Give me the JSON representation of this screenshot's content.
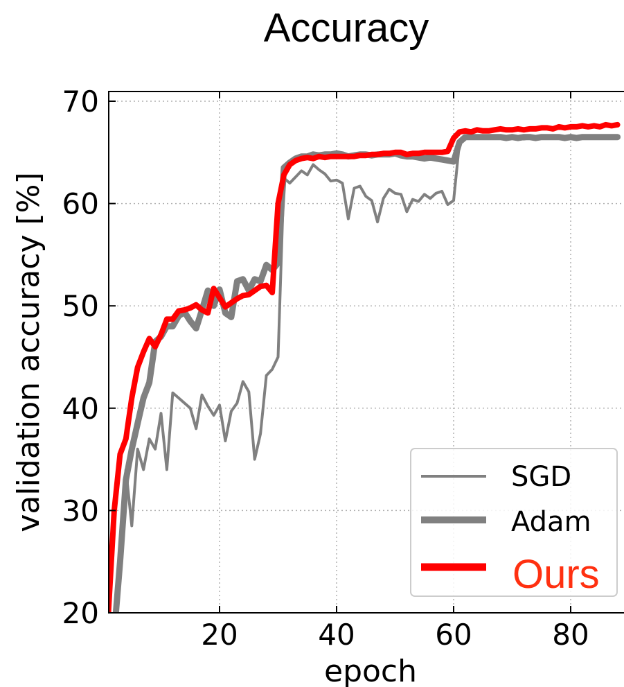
{
  "chart_data": {
    "type": "line",
    "title": "Accuracy",
    "xlabel": "epoch",
    "ylabel": "validation accuracy [%]",
    "xlim": [
      1,
      88
    ],
    "ylim": [
      20,
      71
    ],
    "xticks": [
      20,
      40,
      60,
      80
    ],
    "yticks": [
      20,
      30,
      40,
      50,
      60,
      70
    ],
    "grid": true,
    "legend_position": "lower-right",
    "series": [
      {
        "name": "SGD",
        "color": "#808080",
        "style": "thin",
        "x": [
          1,
          2,
          3,
          4,
          5,
          6,
          7,
          8,
          9,
          10,
          11,
          12,
          13,
          14,
          15,
          16,
          17,
          18,
          19,
          20,
          21,
          22,
          23,
          24,
          25,
          26,
          27,
          28,
          29,
          30,
          31,
          32,
          33,
          34,
          35,
          36,
          37,
          38,
          39,
          40,
          41,
          42,
          43,
          44,
          45,
          46,
          47,
          48,
          49,
          50,
          51,
          52,
          53,
          54,
          55,
          56,
          57,
          58,
          59,
          60,
          61,
          62,
          63,
          64,
          65,
          66,
          67,
          68,
          69,
          70,
          71,
          72,
          73,
          74,
          75,
          76,
          77,
          78,
          79,
          80,
          81,
          82,
          83,
          84,
          85,
          86,
          87,
          88
        ],
        "values": [
          19.5,
          19.0,
          24.0,
          34.0,
          28.5,
          36.0,
          34.0,
          37.0,
          36.0,
          39.5,
          34.0,
          41.5,
          41.0,
          40.5,
          40.0,
          38.0,
          41.3,
          40.2,
          39.3,
          40.3,
          36.8,
          39.7,
          40.5,
          42.6,
          41.6,
          35.0,
          37.5,
          43.2,
          43.8,
          45.0,
          62.5,
          62.0,
          62.6,
          63.2,
          62.8,
          63.8,
          63.3,
          62.9,
          62.2,
          62.3,
          62.0,
          58.5,
          61.5,
          61.7,
          60.7,
          60.3,
          58.2,
          60.5,
          61.4,
          61.0,
          60.9,
          59.2,
          60.4,
          60.2,
          60.9,
          60.5,
          61.0,
          61.2,
          59.9,
          60.3,
          66.0,
          66.4,
          66.4,
          66.5,
          66.4,
          66.4,
          66.5,
          66.4,
          66.3,
          66.4,
          66.4,
          66.3,
          66.4,
          66.4,
          66.5,
          66.4,
          66.4,
          66.5,
          66.4,
          66.4,
          66.4,
          66.5,
          66.4,
          66.5,
          66.4,
          66.5,
          66.5,
          66.4
        ]
      },
      {
        "name": "Adam",
        "color": "#808080",
        "style": "thick",
        "x": [
          1,
          2,
          3,
          4,
          5,
          6,
          7,
          8,
          9,
          10,
          11,
          12,
          13,
          14,
          15,
          16,
          17,
          18,
          19,
          20,
          21,
          22,
          23,
          24,
          25,
          26,
          27,
          28,
          29,
          30,
          31,
          32,
          33,
          34,
          35,
          36,
          37,
          38,
          39,
          40,
          41,
          42,
          43,
          44,
          45,
          46,
          47,
          48,
          49,
          50,
          51,
          52,
          53,
          54,
          55,
          56,
          57,
          58,
          59,
          60,
          61,
          62,
          63,
          64,
          65,
          66,
          67,
          68,
          69,
          70,
          71,
          72,
          73,
          74,
          75,
          76,
          77,
          78,
          79,
          80,
          81,
          82,
          83,
          84,
          85,
          86,
          87,
          88
        ],
        "values": [
          19.5,
          18.0,
          25.0,
          33.0,
          36.0,
          38.5,
          41.0,
          42.5,
          46.5,
          47.0,
          48.0,
          48.0,
          49.0,
          49.4,
          48.5,
          47.8,
          49.6,
          51.5,
          50.0,
          51.6,
          49.3,
          48.9,
          52.4,
          52.6,
          51.5,
          52.6,
          52.4,
          54.0,
          53.5,
          54.2,
          63.5,
          64.0,
          64.4,
          64.6,
          64.6,
          64.8,
          64.7,
          64.8,
          64.8,
          64.9,
          64.8,
          64.6,
          64.7,
          64.8,
          64.8,
          64.7,
          64.8,
          64.8,
          64.8,
          64.9,
          64.7,
          64.6,
          64.6,
          64.5,
          64.4,
          64.5,
          64.4,
          64.3,
          64.2,
          64.1,
          66.0,
          66.5,
          66.5,
          66.5,
          66.5,
          66.5,
          66.5,
          66.5,
          66.4,
          66.5,
          66.4,
          66.5,
          66.5,
          66.4,
          66.5,
          66.5,
          66.5,
          66.5,
          66.4,
          66.5,
          66.4,
          66.5,
          66.5,
          66.5,
          66.5,
          66.5,
          66.5,
          66.5
        ]
      },
      {
        "name": "Ours",
        "color": "#ff0000",
        "style": "thick",
        "x": [
          1,
          2,
          3,
          4,
          5,
          6,
          7,
          8,
          9,
          10,
          11,
          12,
          13,
          14,
          15,
          16,
          17,
          18,
          19,
          20,
          21,
          22,
          23,
          24,
          25,
          26,
          27,
          28,
          29,
          30,
          31,
          32,
          33,
          34,
          35,
          36,
          37,
          38,
          39,
          40,
          41,
          42,
          43,
          44,
          45,
          46,
          47,
          48,
          49,
          50,
          51,
          52,
          53,
          54,
          55,
          56,
          57,
          58,
          59,
          60,
          61,
          62,
          63,
          64,
          65,
          66,
          67,
          68,
          69,
          70,
          71,
          72,
          73,
          74,
          75,
          76,
          77,
          78,
          79,
          80,
          81,
          82,
          83,
          84,
          85,
          86,
          87,
          88
        ],
        "values": [
          20.0,
          30.0,
          35.5,
          37.0,
          41.0,
          44.0,
          45.5,
          46.8,
          46.0,
          47.2,
          48.7,
          48.7,
          49.5,
          49.6,
          49.8,
          50.1,
          49.6,
          49.3,
          51.7,
          50.8,
          49.9,
          50.3,
          50.7,
          51.0,
          51.1,
          51.5,
          51.9,
          52.0,
          51.3,
          60.0,
          62.8,
          63.8,
          64.2,
          64.4,
          64.5,
          64.4,
          64.6,
          64.5,
          64.6,
          64.6,
          64.6,
          64.6,
          64.6,
          64.7,
          64.7,
          64.8,
          64.8,
          64.9,
          64.9,
          65.0,
          65.0,
          64.8,
          64.9,
          64.9,
          65.0,
          65.0,
          65.0,
          65.0,
          65.1,
          66.4,
          67.0,
          67.1,
          67.0,
          67.2,
          67.1,
          67.1,
          67.2,
          67.3,
          67.2,
          67.2,
          67.3,
          67.2,
          67.3,
          67.3,
          67.4,
          67.4,
          67.3,
          67.5,
          67.4,
          67.5,
          67.5,
          67.6,
          67.5,
          67.6,
          67.5,
          67.7,
          67.6,
          67.7
        ]
      }
    ]
  }
}
